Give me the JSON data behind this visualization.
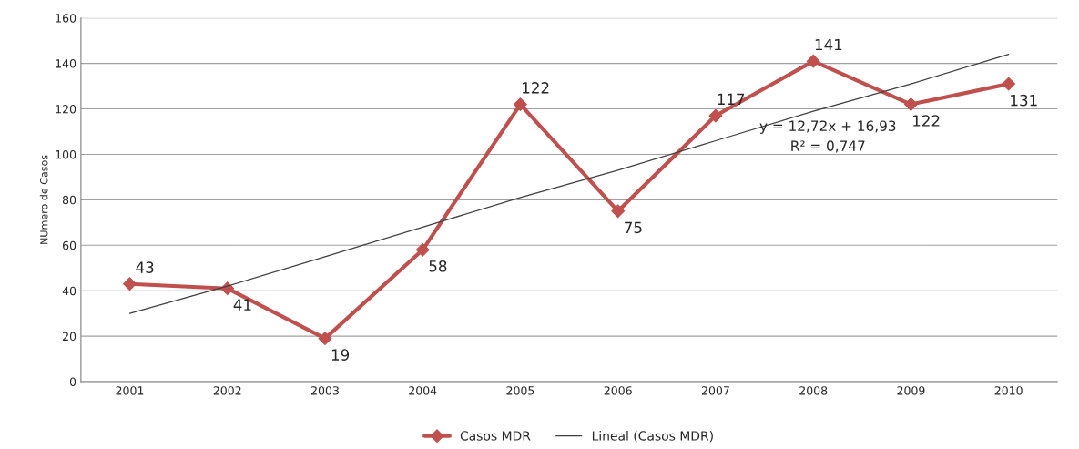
{
  "chart_data": {
    "type": "line",
    "ylabel": "NUmero de Casos",
    "categories": [
      "2001",
      "2002",
      "2003",
      "2004",
      "2005",
      "2006",
      "2007",
      "2008",
      "2009",
      "2010"
    ],
    "series": [
      {
        "name": "Casos MDR",
        "color": "#c0504d",
        "values": [
          43,
          41,
          19,
          58,
          122,
          75,
          117,
          141,
          122,
          131
        ],
        "marker": "diamond",
        "data_labels": true
      },
      {
        "name": "Lineal (Casos MDR)",
        "color": "#404040",
        "values": [
          30,
          42,
          55,
          68,
          81,
          93,
          106,
          119,
          131,
          144
        ],
        "marker": "none"
      }
    ],
    "annotations": [
      "y = 12,72x + 16,93",
      "R² = 0,747"
    ],
    "ylim": [
      0,
      160
    ],
    "yticks": [
      0,
      20,
      40,
      60,
      80,
      100,
      120,
      140,
      160
    ],
    "grid": "y",
    "legend": "bottom",
    "line_style": "solid"
  }
}
